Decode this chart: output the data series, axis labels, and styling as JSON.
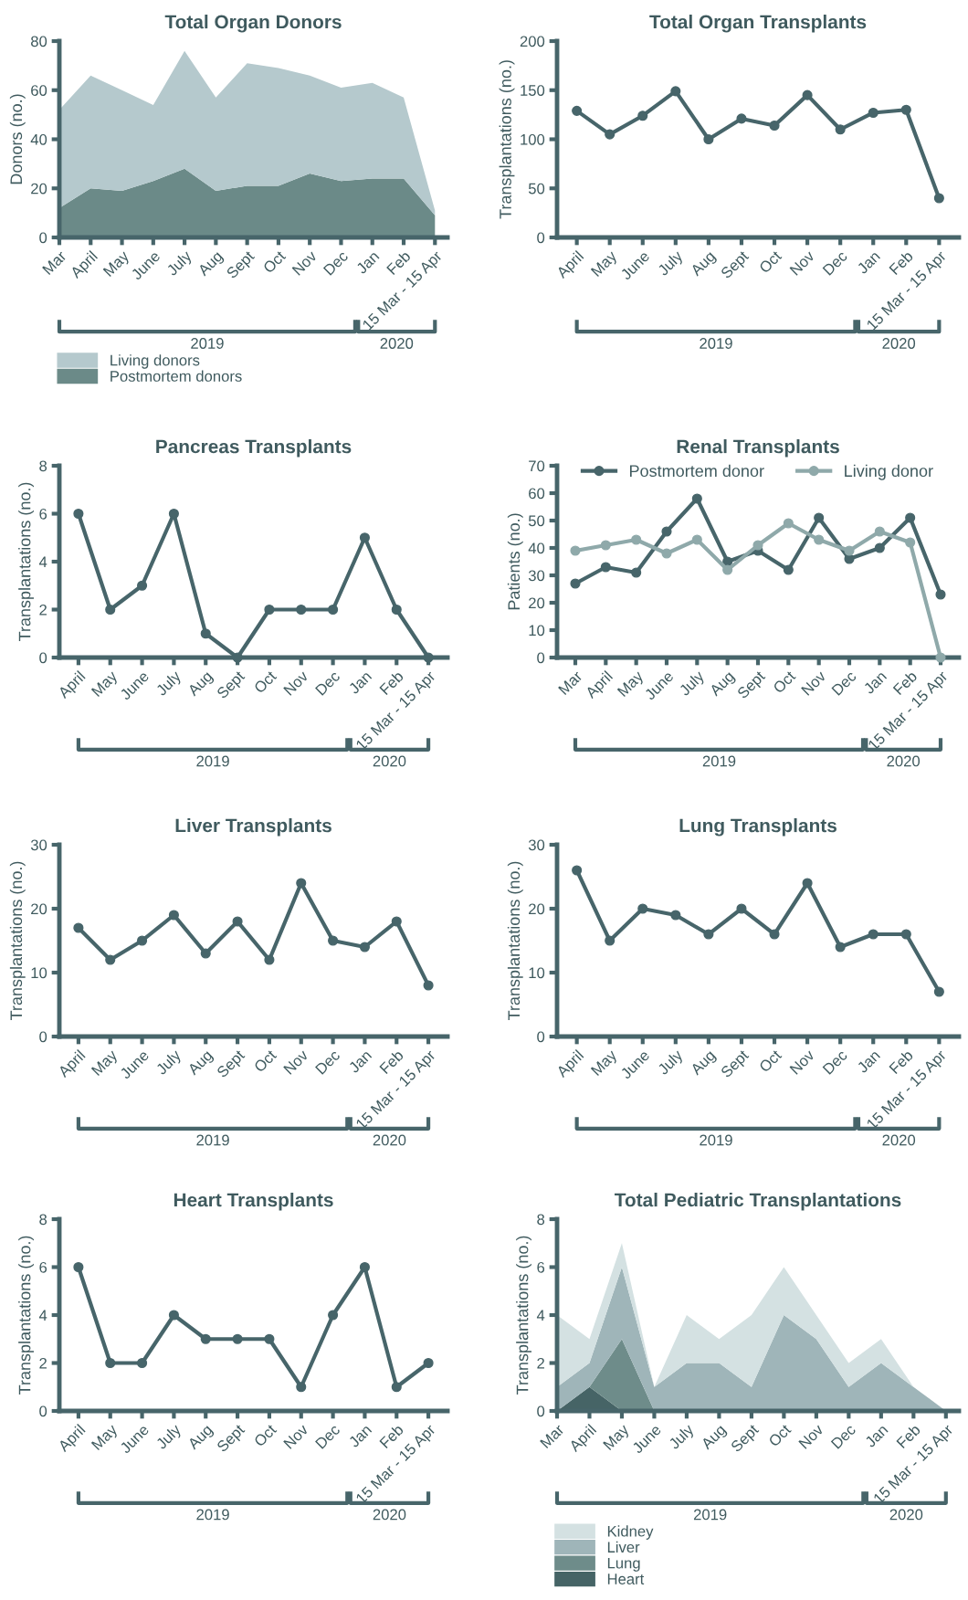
{
  "chart_data": [
    {
      "type": "area",
      "title": "Total Organ Donors",
      "ylabel": "Donors (no.)",
      "stacked": true,
      "legend": "bottom",
      "categories": [
        "Mar",
        "April",
        "May",
        "June",
        "July",
        "Aug",
        "Sept",
        "Oct",
        "Nov",
        "Dec",
        "Jan",
        "Feb",
        "15 Mar - 15 Apr"
      ],
      "series": [
        {
          "name": "Postmortem donors",
          "color": "#6b8a88",
          "values": [
            12,
            20,
            19,
            23,
            28,
            19,
            21,
            21,
            26,
            23,
            24,
            24,
            9
          ]
        },
        {
          "name": "Living donors",
          "color": "#b5c9cd",
          "values": [
            40,
            46,
            41,
            31,
            48,
            38,
            50,
            48,
            40,
            38,
            39,
            33,
            2
          ]
        }
      ],
      "ylim": [
        0,
        80
      ],
      "yticks": [
        0,
        20,
        40,
        60,
        80
      ],
      "annotations": [
        "2019",
        "2020"
      ]
    },
    {
      "type": "line",
      "title": "Total Organ Transplants",
      "ylabel": "Transplantations (no.)",
      "marker": "circle",
      "categories": [
        "April",
        "May",
        "June",
        "July",
        "Aug",
        "Sept",
        "Oct",
        "Nov",
        "Dec",
        "Jan",
        "Feb",
        "15 Mar - 15 Apr"
      ],
      "series": [
        {
          "color": "#47656a",
          "values": [
            129,
            105,
            124,
            149,
            100,
            121,
            114,
            145,
            110,
            127,
            130,
            40
          ]
        }
      ],
      "ylim": [
        0,
        200
      ],
      "yticks": [
        0,
        50,
        100,
        150,
        200
      ],
      "annotations": [
        "2019",
        "2020"
      ]
    },
    {
      "type": "line",
      "title": "Pancreas Transplants",
      "ylabel": "Transplantations (no.)",
      "marker": "circle",
      "categories": [
        "April",
        "May",
        "June",
        "July",
        "Aug",
        "Sept",
        "Oct",
        "Nov",
        "Dec",
        "Jan",
        "Feb",
        "15 Mar - 15 Apr"
      ],
      "series": [
        {
          "color": "#47656a",
          "values": [
            6,
            2,
            3,
            6,
            1,
            0,
            2,
            2,
            2,
            5,
            2,
            0
          ]
        }
      ],
      "ylim": [
        0,
        8
      ],
      "yticks": [
        0,
        2,
        4,
        6,
        8
      ],
      "annotations": [
        "2019",
        "2020"
      ]
    },
    {
      "type": "line",
      "title": "Renal Transplants",
      "ylabel": "Patients (no.)",
      "marker": "circle",
      "legend": "top",
      "categories": [
        "Mar",
        "April",
        "May",
        "June",
        "July",
        "Aug",
        "Sept",
        "Oct",
        "Nov",
        "Dec",
        "Jan",
        "Feb",
        "15 Mar - 15 Apr"
      ],
      "series": [
        {
          "name": "Postmortem donor",
          "color": "#47656a",
          "values": [
            27,
            33,
            31,
            46,
            58,
            35,
            39,
            32,
            51,
            36,
            40,
            51,
            23
          ]
        },
        {
          "name": "Living donor",
          "color": "#8fa9aa",
          "values": [
            39,
            41,
            43,
            38,
            43,
            32,
            41,
            49,
            43,
            39,
            46,
            42,
            0
          ]
        }
      ],
      "ylim": [
        0,
        70
      ],
      "yticks": [
        0,
        10,
        20,
        30,
        40,
        50,
        60,
        70
      ],
      "annotations": [
        "2019",
        "2020"
      ]
    },
    {
      "type": "line",
      "title": "Liver Transplants",
      "ylabel": "Transplantations (no.)",
      "marker": "circle",
      "categories": [
        "April",
        "May",
        "June",
        "July",
        "Aug",
        "Sept",
        "Oct",
        "Nov",
        "Dec",
        "Jan",
        "Feb",
        "15 Mar - 15 Apr"
      ],
      "series": [
        {
          "color": "#47656a",
          "values": [
            17,
            12,
            15,
            19,
            13,
            18,
            12,
            24,
            15,
            14,
            18,
            8
          ]
        }
      ],
      "ylim": [
        0,
        30
      ],
      "yticks": [
        0,
        10,
        20,
        30
      ],
      "annotations": [
        "2019",
        "2020"
      ]
    },
    {
      "type": "line",
      "title": "Lung Transplants",
      "ylabel": "Transplantations (no.)",
      "marker": "circle",
      "categories": [
        "April",
        "May",
        "June",
        "July",
        "Aug",
        "Sept",
        "Oct",
        "Nov",
        "Dec",
        "Jan",
        "Feb",
        "15 Mar - 15 Apr"
      ],
      "series": [
        {
          "color": "#47656a",
          "values": [
            26,
            15,
            20,
            19,
            16,
            20,
            16,
            24,
            14,
            16,
            16,
            7
          ]
        }
      ],
      "ylim": [
        0,
        30
      ],
      "yticks": [
        0,
        10,
        20,
        30
      ],
      "annotations": [
        "2019",
        "2020"
      ]
    },
    {
      "type": "line",
      "title": "Heart Transplants",
      "ylabel": "Transplantations (no.)",
      "marker": "circle",
      "categories": [
        "April",
        "May",
        "June",
        "July",
        "Aug",
        "Sept",
        "Oct",
        "Nov",
        "Dec",
        "Jan",
        "Feb",
        "15 Mar - 15 Apr"
      ],
      "series": [
        {
          "color": "#47656a",
          "values": [
            6,
            2,
            2,
            4,
            3,
            3,
            3,
            1,
            4,
            6,
            1,
            2
          ]
        }
      ],
      "ylim": [
        0,
        8
      ],
      "yticks": [
        0,
        2,
        4,
        6,
        8
      ],
      "annotations": [
        "2019",
        "2020"
      ]
    },
    {
      "type": "area",
      "title": "Total Pediatric Transplantations",
      "ylabel": "Transplantations (no.)",
      "stacked": true,
      "legend": "bottom",
      "categories": [
        "Mar",
        "April",
        "May",
        "June",
        "July",
        "Aug",
        "Sept",
        "Oct",
        "Nov",
        "Dec",
        "Jan",
        "Feb",
        "15 Mar - 15 Apr"
      ],
      "series": [
        {
          "name": "Heart",
          "color": "#466466",
          "values": [
            0,
            1,
            0,
            0,
            0,
            0,
            0,
            0,
            0,
            0,
            0,
            0,
            0
          ]
        },
        {
          "name": "Lung",
          "color": "#6e8c8a",
          "values": [
            0,
            0,
            3,
            0,
            0,
            0,
            0,
            0,
            0,
            0,
            0,
            0,
            0
          ]
        },
        {
          "name": "Liver",
          "color": "#9fb5b9",
          "values": [
            1,
            1,
            3,
            1,
            2,
            2,
            1,
            4,
            3,
            1,
            2,
            1,
            0
          ]
        },
        {
          "name": "Kidney",
          "color": "#d4e1e2",
          "values": [
            3,
            1,
            1,
            0,
            2,
            1,
            3,
            2,
            1,
            1,
            1,
            0,
            0
          ]
        }
      ],
      "ylim": [
        0,
        8
      ],
      "yticks": [
        0,
        2,
        4,
        6,
        8
      ],
      "annotations": [
        "2019",
        "2020"
      ]
    }
  ]
}
